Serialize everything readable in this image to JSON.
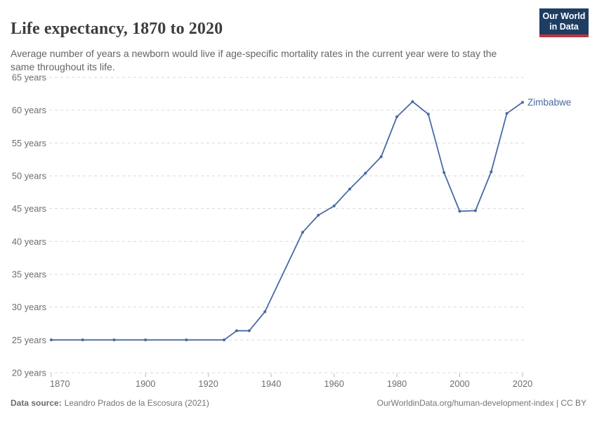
{
  "header": {
    "title": "Life expectancy, 1870 to 2020",
    "subtitle": "Average number of years a newborn would live if age-specific mortality rates in the current year were to stay the same throughout its life.",
    "logo": {
      "line1": "Our World",
      "line2": "in Data"
    }
  },
  "chart_data": {
    "type": "line",
    "title": "Life expectancy, 1870 to 2020",
    "xlabel": "",
    "ylabel": "",
    "xlim": [
      1870,
      2020
    ],
    "ylim": [
      20,
      65
    ],
    "grid": "horizontal-dashed",
    "legend_position": "end-of-line-label",
    "x_ticks": [
      1870,
      1900,
      1920,
      1940,
      1960,
      1980,
      2000,
      2020
    ],
    "y_ticks": [
      20,
      25,
      30,
      35,
      40,
      45,
      50,
      55,
      60,
      65
    ],
    "y_tick_suffix": " years",
    "series": [
      {
        "name": "Zimbabwe",
        "points": [
          [
            1870,
            25.0
          ],
          [
            1880,
            25.0
          ],
          [
            1890,
            25.0
          ],
          [
            1900,
            25.0
          ],
          [
            1913,
            25.0
          ],
          [
            1925,
            25.0
          ],
          [
            1929,
            26.4
          ],
          [
            1933,
            26.4
          ],
          [
            1938,
            29.3
          ],
          [
            1950,
            41.4
          ],
          [
            1955,
            44.0
          ],
          [
            1960,
            45.4
          ],
          [
            1965,
            48.0
          ],
          [
            1970,
            50.4
          ],
          [
            1975,
            52.9
          ],
          [
            1980,
            59.0
          ],
          [
            1985,
            61.3
          ],
          [
            1990,
            59.4
          ],
          [
            1995,
            50.5
          ],
          [
            2000,
            44.6
          ],
          [
            2005,
            44.7
          ],
          [
            2010,
            50.6
          ],
          [
            2015,
            59.5
          ],
          [
            2020,
            61.2
          ]
        ]
      }
    ]
  },
  "colors": {
    "line": "#4a69a2",
    "grid": "#dadada",
    "tick": "#b8b8b8",
    "axis_text": "#6e6e6e",
    "title": "#3d3d3d",
    "subtitle": "#646464",
    "footer": "#757575",
    "logo_bg": "#1d3d63",
    "logo_stripe": "#c0343f"
  },
  "footer": {
    "source_label": "Data source:",
    "source_text": "Leandro Prados de la Escosura (2021)",
    "right_text": "OurWorldinData.org/human-development-index | CC BY"
  }
}
